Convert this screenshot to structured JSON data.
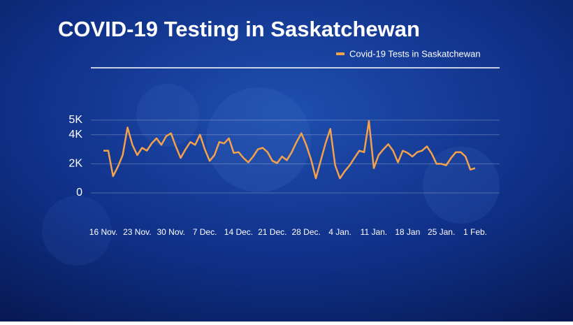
{
  "chart_data": {
    "type": "line",
    "title": "COVID-19 Testing in Saskatchewan",
    "categories": [
      "16 Nov.",
      null,
      null,
      null,
      null,
      null,
      null,
      "23 Nov.",
      null,
      null,
      null,
      null,
      null,
      null,
      "30 Nov.",
      null,
      null,
      null,
      null,
      null,
      null,
      "7 Dec.",
      null,
      null,
      null,
      null,
      null,
      null,
      "14 Dec.",
      null,
      null,
      null,
      null,
      null,
      null,
      "21 Dec.",
      null,
      null,
      null,
      null,
      null,
      null,
      "28 Dec.",
      null,
      null,
      null,
      null,
      null,
      null,
      "4 Jan.",
      null,
      null,
      null,
      null,
      null,
      null,
      "11 Jan.",
      null,
      null,
      null,
      null,
      null,
      null,
      "18 Jan",
      null,
      null,
      null,
      null,
      null,
      null,
      "25 Jan.",
      null,
      null,
      null,
      null,
      null,
      null,
      "1 Feb."
    ],
    "series": [
      {
        "name": "Covid-19 Tests in Saskatchewan",
        "color": "#f5a04a",
        "values": [
          2900,
          2900,
          1150,
          1800,
          2600,
          4500,
          3300,
          2600,
          3100,
          2900,
          3400,
          3750,
          3300,
          3900,
          4100,
          3200,
          2400,
          3000,
          3500,
          3300,
          4000,
          3000,
          2200,
          2600,
          3500,
          3400,
          3750,
          2750,
          2800,
          2400,
          2100,
          2500,
          3000,
          3100,
          2800,
          2200,
          2050,
          2500,
          2250,
          2800,
          3500,
          4100,
          3300,
          2300,
          1000,
          2200,
          3400,
          4400,
          1900,
          1000,
          1500,
          1900,
          2400,
          2900,
          2800,
          4950,
          1700,
          2600,
          3000,
          3350,
          2900,
          2100,
          2900,
          2750,
          2500,
          2800,
          2900,
          3200,
          2700,
          2000,
          2000,
          1900,
          2400,
          2800,
          2800,
          2500,
          1600,
          1700
        ]
      }
    ],
    "ylim": [
      0,
      8600
    ],
    "yticks": [
      0,
      {
        "value": 2000,
        "label": "2K"
      },
      {
        "value": 4000,
        "label": "4K"
      },
      {
        "value": 5000,
        "label": "5K"
      }
    ],
    "grid": true,
    "legend": "top-right"
  }
}
